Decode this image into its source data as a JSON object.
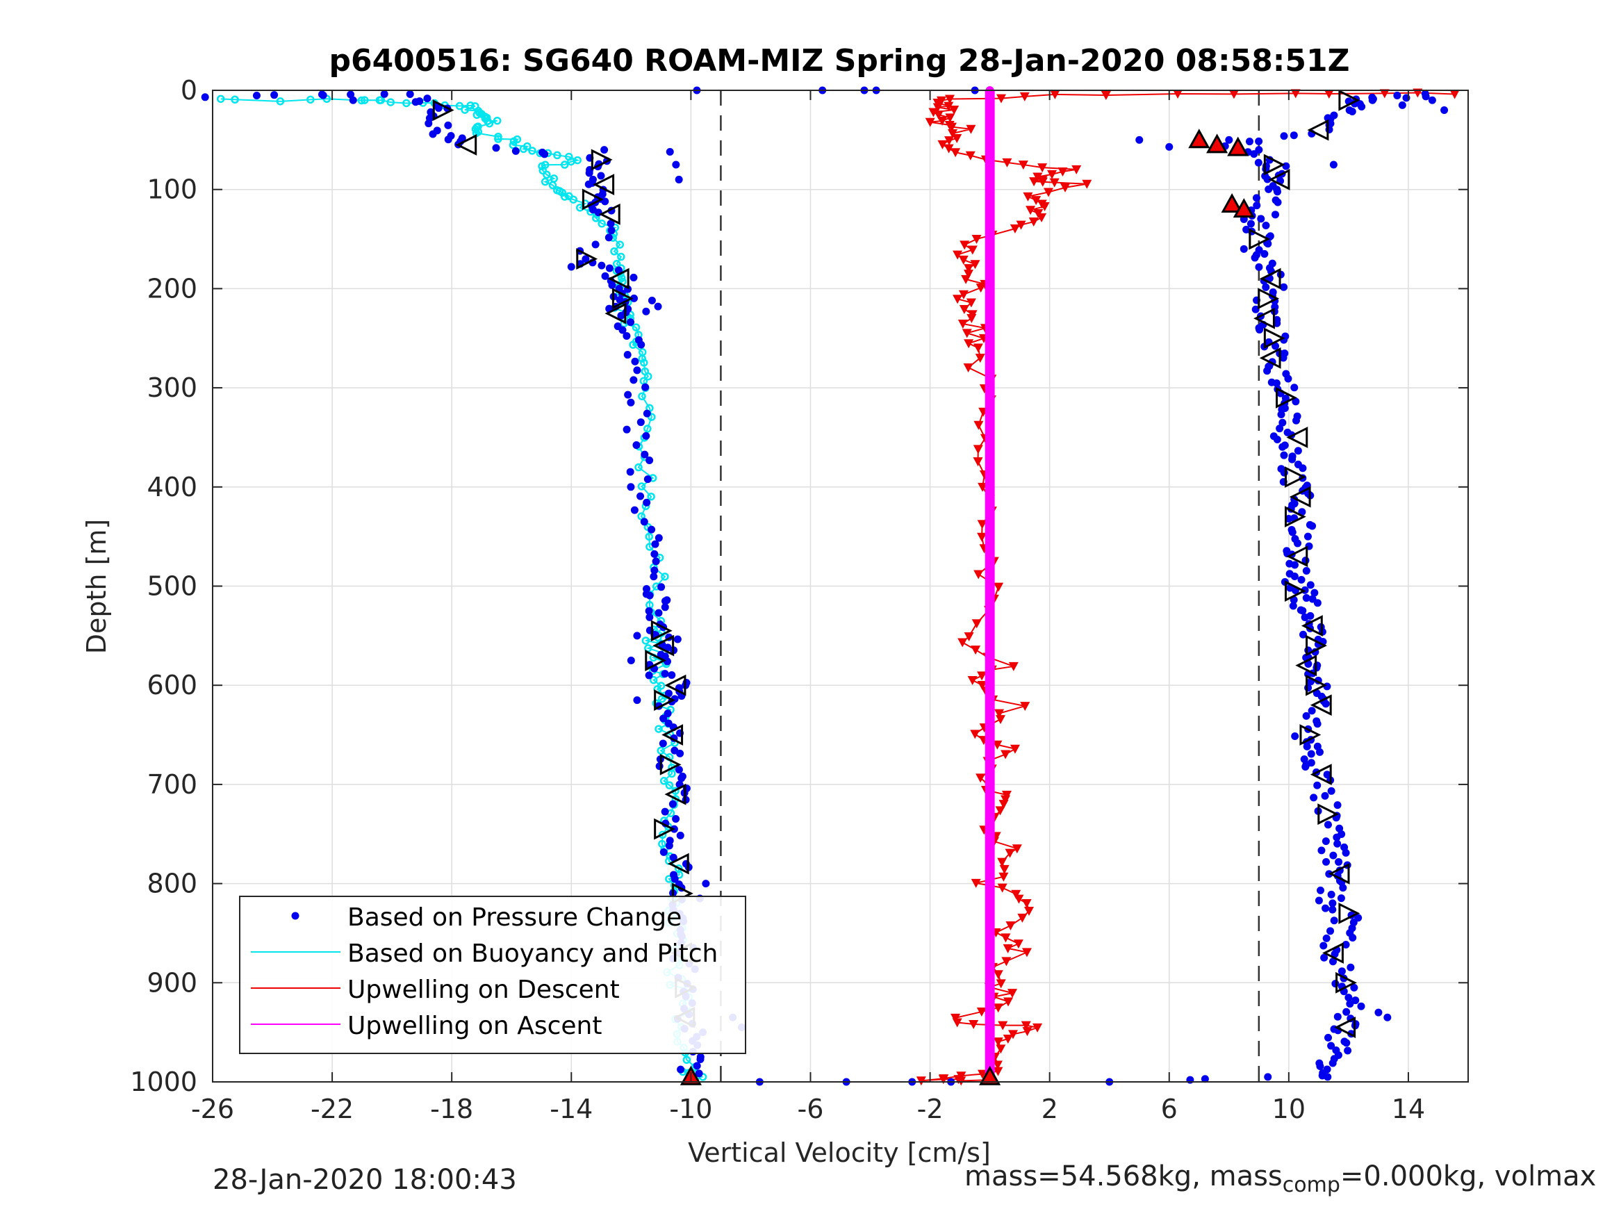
{
  "chart_data": {
    "type": "scatter",
    "title": "p6400516: SG640 ROAM-MIZ Spring 28-Jan-2020 08:58:51Z",
    "xlabel": "Vertical Velocity [cm/s]",
    "ylabel": "Depth [m]",
    "xlim": [
      -26,
      16
    ],
    "ylim": [
      0,
      1000
    ],
    "y_reversed": true,
    "x_ticks": [
      -26,
      -22,
      -18,
      -14,
      -10,
      -6,
      -2,
      2,
      6,
      10,
      14
    ],
    "y_ticks": [
      0,
      100,
      200,
      300,
      400,
      500,
      600,
      700,
      800,
      900,
      1000
    ],
    "grid": true,
    "legend_position": "bottom-left",
    "reference_lines_x": [
      -9,
      9
    ],
    "colors": {
      "pressure": "#0000ee",
      "buoyancy": "#00e5ee",
      "descent": "#ee0000",
      "ascent": "#ff00ff",
      "marker": "#000000"
    },
    "series": [
      {
        "name": "Based on Pressure Change",
        "style": "dots",
        "descent_profile": [
          [
            -26,
            5
          ],
          [
            -19,
            5
          ],
          [
            -18.5,
            20
          ],
          [
            -18.5,
            40
          ],
          [
            -17.5,
            55
          ],
          [
            -13,
            70
          ],
          [
            -13,
            90
          ],
          [
            -13.3,
            110
          ],
          [
            -12.7,
            125
          ],
          [
            -13.5,
            170
          ],
          [
            -12.3,
            190
          ],
          [
            -12.2,
            210
          ],
          [
            -12.5,
            225
          ],
          [
            -12,
            250
          ],
          [
            -11.8,
            300
          ],
          [
            -11.8,
            350
          ],
          [
            -11.7,
            400
          ],
          [
            -11.4,
            450
          ],
          [
            -11.3,
            500
          ],
          [
            -11,
            520
          ],
          [
            -11,
            545
          ],
          [
            -10.7,
            560
          ],
          [
            -11.1,
            575
          ],
          [
            -10.4,
            600
          ],
          [
            -10.8,
            615
          ],
          [
            -10.5,
            650
          ],
          [
            -10.7,
            680
          ],
          [
            -10.5,
            710
          ],
          [
            -10.8,
            745
          ],
          [
            -10.4,
            780
          ],
          [
            -10.3,
            810
          ],
          [
            -10.3,
            840
          ],
          [
            -10.3,
            870
          ],
          [
            -10.2,
            905
          ],
          [
            -10.1,
            935
          ],
          [
            -10,
            970
          ],
          [
            -10,
            995
          ]
        ],
        "ascent_profile": [
          [
            15,
            5
          ],
          [
            12.2,
            10
          ],
          [
            12,
            20
          ],
          [
            11,
            40
          ],
          [
            8,
            55
          ],
          [
            9.5,
            75
          ],
          [
            9.7,
            90
          ],
          [
            9.3,
            110
          ],
          [
            9,
            130
          ],
          [
            9,
            150
          ],
          [
            9.3,
            170
          ],
          [
            9.5,
            190
          ],
          [
            9.3,
            210
          ],
          [
            9.2,
            230
          ],
          [
            9.5,
            250
          ],
          [
            9.4,
            270
          ],
          [
            9.8,
            290
          ],
          [
            10,
            310
          ],
          [
            10.2,
            330
          ],
          [
            9.8,
            350
          ],
          [
            10.3,
            370
          ],
          [
            10.1,
            390
          ],
          [
            10.4,
            410
          ],
          [
            10.2,
            430
          ],
          [
            10.5,
            450
          ],
          [
            10.3,
            470
          ],
          [
            10.2,
            490
          ],
          [
            10.4,
            505
          ],
          [
            10.6,
            520
          ],
          [
            10.8,
            540
          ],
          [
            10.9,
            560
          ],
          [
            10.6,
            580
          ],
          [
            10.9,
            600
          ],
          [
            11.1,
            620
          ],
          [
            10.5,
            650
          ],
          [
            10.8,
            670
          ],
          [
            11,
            690
          ],
          [
            11.2,
            720
          ],
          [
            11.4,
            750
          ],
          [
            11.5,
            770
          ],
          [
            11.7,
            790
          ],
          [
            11.2,
            810
          ],
          [
            11.9,
            830
          ],
          [
            11.8,
            850
          ],
          [
            11.4,
            870
          ],
          [
            11.9,
            900
          ],
          [
            12.1,
            920
          ],
          [
            11.9,
            945
          ],
          [
            11.7,
            960
          ],
          [
            11.5,
            980
          ],
          [
            11.3,
            995
          ]
        ],
        "scatter_extra": [
          [
            -22.3,
            5
          ],
          [
            -21.3,
            10
          ],
          [
            -9.8,
            0
          ],
          [
            -5.6,
            0
          ],
          [
            -4.2,
            0
          ],
          [
            -3.8,
            0
          ],
          [
            -0.5,
            0
          ],
          [
            -12.9,
            60
          ],
          [
            -10.7,
            62
          ],
          [
            -10.5,
            75
          ],
          [
            -10.4,
            90
          ],
          [
            -13.7,
            175
          ],
          [
            -14,
            178
          ],
          [
            -11.3,
            212
          ],
          [
            -12.4,
            200
          ],
          [
            -11.1,
            218
          ],
          [
            -11.5,
            223
          ],
          [
            -11.8,
            550
          ],
          [
            -12,
            575
          ],
          [
            -11.4,
            590
          ],
          [
            -11.8,
            615
          ],
          [
            -9.5,
            800
          ],
          [
            -9.7,
            815
          ],
          [
            -8.6,
            935
          ],
          [
            -8.3,
            945
          ],
          [
            -9.6,
            950
          ],
          [
            -7.7,
            1000
          ],
          [
            -4.8,
            1000
          ],
          [
            -2.6,
            1000
          ],
          [
            -1.3,
            1000
          ],
          [
            4,
            1000
          ],
          [
            6.7,
            998
          ],
          [
            7.2,
            997
          ],
          [
            9.3,
            995
          ],
          [
            5,
            50
          ],
          [
            6,
            57
          ],
          [
            8,
            50
          ],
          [
            9,
            60
          ],
          [
            9.6,
            100
          ],
          [
            8.5,
            130
          ],
          [
            8.5,
            160
          ],
          [
            12.8,
            10
          ],
          [
            13.8,
            15
          ],
          [
            15.2,
            20
          ],
          [
            14.8,
            10
          ],
          [
            11.5,
            75
          ],
          [
            13.3,
            935
          ],
          [
            13,
            930
          ]
        ]
      },
      {
        "name": "Based on Buoyancy and Pitch",
        "style": "line-circles",
        "points": [
          [
            -26,
            10
          ],
          [
            -21,
            10
          ],
          [
            -19.5,
            12
          ],
          [
            -17.5,
            15
          ],
          [
            -17,
            25
          ],
          [
            -16.5,
            30
          ],
          [
            -17.5,
            40
          ],
          [
            -16,
            50
          ],
          [
            -15.5,
            60
          ],
          [
            -14,
            70
          ],
          [
            -15,
            80
          ],
          [
            -14.5,
            100
          ],
          [
            -14,
            110
          ],
          [
            -13,
            130
          ],
          [
            -12.4,
            150
          ],
          [
            -12.2,
            180
          ],
          [
            -12.5,
            195
          ],
          [
            -12.4,
            215
          ],
          [
            -12,
            240
          ],
          [
            -11.7,
            270
          ],
          [
            -11.6,
            300
          ],
          [
            -11.6,
            350
          ],
          [
            -11.4,
            400
          ],
          [
            -11.4,
            450
          ],
          [
            -11.1,
            500
          ],
          [
            -11.1,
            545
          ],
          [
            -11.3,
            560
          ],
          [
            -11,
            580
          ],
          [
            -11.2,
            605
          ],
          [
            -10.8,
            625
          ],
          [
            -10.9,
            650
          ],
          [
            -10.6,
            690
          ],
          [
            -10.8,
            720
          ],
          [
            -10.7,
            760
          ],
          [
            -10.5,
            790
          ],
          [
            -10.7,
            820
          ],
          [
            -10.5,
            850
          ],
          [
            -10.5,
            890
          ],
          [
            -10.3,
            920
          ],
          [
            -10.2,
            960
          ],
          [
            -10,
            990
          ],
          [
            -9.6,
            995
          ]
        ]
      },
      {
        "name": "Upwelling on Descent",
        "style": "line-triangles-down",
        "points": [
          [
            16,
            3
          ],
          [
            10,
            3
          ],
          [
            2,
            5
          ],
          [
            -2,
            10
          ],
          [
            -1.5,
            20
          ],
          [
            -1.8,
            30
          ],
          [
            -1,
            40
          ],
          [
            -1.5,
            55
          ],
          [
            -0.5,
            70
          ],
          [
            2.5,
            80
          ],
          [
            1.5,
            90
          ],
          [
            2.8,
            95
          ],
          [
            1.2,
            110
          ],
          [
            2,
            125
          ],
          [
            0.5,
            140
          ],
          [
            -0.7,
            160
          ],
          [
            -0.5,
            180
          ],
          [
            -0.3,
            200
          ],
          [
            -1.2,
            220
          ],
          [
            -0.5,
            240
          ],
          [
            -0.6,
            260
          ],
          [
            -0.3,
            300
          ],
          [
            -0.4,
            350
          ],
          [
            -0.3,
            400
          ],
          [
            0,
            450
          ],
          [
            0,
            500
          ],
          [
            -0.9,
            550
          ],
          [
            0.7,
            580
          ],
          [
            -0.7,
            600
          ],
          [
            0.9,
            620
          ],
          [
            -0.2,
            650
          ],
          [
            0.6,
            670
          ],
          [
            -0.3,
            700
          ],
          [
            0.6,
            720
          ],
          [
            -0.4,
            745
          ],
          [
            0.8,
            770
          ],
          [
            -0.2,
            800
          ],
          [
            1.2,
            820
          ],
          [
            0.3,
            850
          ],
          [
            0.9,
            870
          ],
          [
            0.2,
            900
          ],
          [
            0.5,
            920
          ],
          [
            -1.5,
            940
          ],
          [
            2,
            945
          ],
          [
            0,
            960
          ],
          [
            0,
            990
          ],
          [
            -2.5,
            998
          ],
          [
            0,
            998
          ]
        ]
      },
      {
        "name": "Upwelling on Ascent",
        "style": "line-dots",
        "points": [
          [
            0,
            0
          ],
          [
            0,
            200
          ],
          [
            0,
            400
          ],
          [
            0,
            600
          ],
          [
            0,
            800
          ],
          [
            0,
            1000
          ]
        ]
      }
    ],
    "markers_open_triangles": [
      [
        -18.3,
        20
      ],
      [
        -17.5,
        55
      ],
      [
        -13,
        70
      ],
      [
        -12.9,
        95
      ],
      [
        -13.3,
        110
      ],
      [
        -12.7,
        125
      ],
      [
        -13.5,
        170
      ],
      [
        -12.4,
        190
      ],
      [
        -12.3,
        210
      ],
      [
        -12.5,
        225
      ],
      [
        -11,
        545
      ],
      [
        -10.9,
        560
      ],
      [
        -11.2,
        575
      ],
      [
        -10.5,
        600
      ],
      [
        -10.9,
        615
      ],
      [
        -10.6,
        650
      ],
      [
        -10.7,
        680
      ],
      [
        -10.5,
        710
      ],
      [
        -10.9,
        745
      ],
      [
        -10.4,
        780
      ],
      [
        -10.3,
        810
      ],
      [
        -10.3,
        870
      ],
      [
        -10.2,
        905
      ],
      [
        -10.2,
        935
      ],
      [
        12,
        10
      ],
      [
        11,
        40
      ],
      [
        9.5,
        75
      ],
      [
        9.7,
        90
      ],
      [
        9,
        150
      ],
      [
        9.4,
        190
      ],
      [
        9.3,
        210
      ],
      [
        9.2,
        230
      ],
      [
        9.5,
        250
      ],
      [
        9.4,
        270
      ],
      [
        9.9,
        310
      ],
      [
        10.3,
        350
      ],
      [
        10.2,
        390
      ],
      [
        10.4,
        410
      ],
      [
        10.2,
        430
      ],
      [
        10.3,
        470
      ],
      [
        10.2,
        505
      ],
      [
        10.8,
        540
      ],
      [
        10.9,
        560
      ],
      [
        10.6,
        580
      ],
      [
        10.9,
        600
      ],
      [
        11.1,
        620
      ],
      [
        10.7,
        650
      ],
      [
        11.1,
        690
      ],
      [
        11.3,
        730
      ],
      [
        11.7,
        790
      ],
      [
        12,
        830
      ],
      [
        11.5,
        870
      ],
      [
        11.9,
        900
      ],
      [
        11.9,
        945
      ]
    ],
    "markers_red_triangles": [
      [
        -10,
        995
      ],
      [
        0,
        995
      ],
      [
        7,
        50
      ],
      [
        7.6,
        55
      ],
      [
        8.3,
        58
      ],
      [
        8.1,
        115
      ],
      [
        8.5,
        120
      ]
    ],
    "legend": [
      "Based on Pressure Change",
      "Based on Buoyancy and Pitch",
      "Upwelling on Descent",
      "Upwelling on Ascent"
    ]
  },
  "footer": {
    "timestamp": "28-Jan-2020 18:00:43",
    "mass_text": "mass=54.568kg, mass",
    "mass_sub": "comp",
    "mass_rest": "=0.000kg, volmax"
  }
}
